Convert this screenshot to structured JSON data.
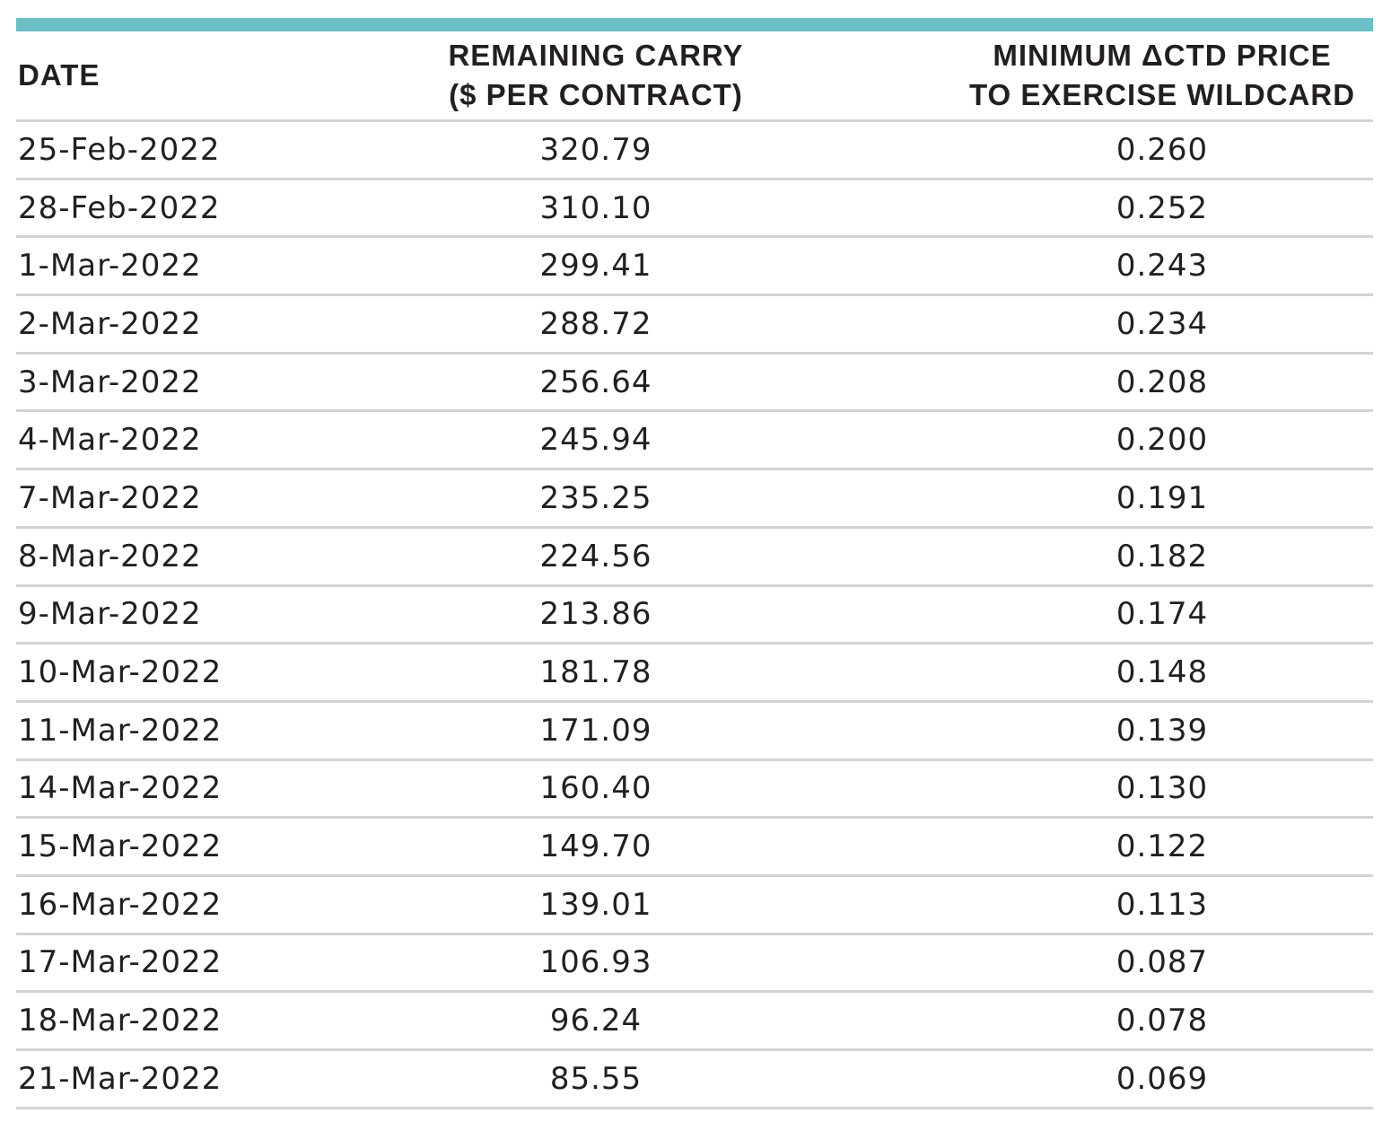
{
  "colors": {
    "top_bar": "#6bbfc5",
    "rule": "#d1d3d4",
    "text": "#231f20"
  },
  "table": {
    "headers": {
      "date": "DATE",
      "carry_line1": "REMAINING CARRY",
      "carry_line2": "($ PER CONTRACT)",
      "delta_line1": "MINIMUM ΔCTD PRICE",
      "delta_line2": "TO EXERCISE WILDCARD"
    },
    "rows": [
      {
        "date": "25-Feb-2022",
        "carry": "320.79",
        "min_price": "0.260"
      },
      {
        "date": "28-Feb-2022",
        "carry": "310.10",
        "min_price": "0.252"
      },
      {
        "date": "1-Mar-2022",
        "carry": "299.41",
        "min_price": "0.243"
      },
      {
        "date": "2-Mar-2022",
        "carry": "288.72",
        "min_price": "0.234"
      },
      {
        "date": "3-Mar-2022",
        "carry": "256.64",
        "min_price": "0.208"
      },
      {
        "date": "4-Mar-2022",
        "carry": "245.94",
        "min_price": "0.200"
      },
      {
        "date": "7-Mar-2022",
        "carry": "235.25",
        "min_price": "0.191"
      },
      {
        "date": "8-Mar-2022",
        "carry": "224.56",
        "min_price": "0.182"
      },
      {
        "date": "9-Mar-2022",
        "carry": "213.86",
        "min_price": "0.174"
      },
      {
        "date": "10-Mar-2022",
        "carry": "181.78",
        "min_price": "0.148"
      },
      {
        "date": "11-Mar-2022",
        "carry": "171.09",
        "min_price": "0.139"
      },
      {
        "date": "14-Mar-2022",
        "carry": "160.40",
        "min_price": "0.130"
      },
      {
        "date": "15-Mar-2022",
        "carry": "149.70",
        "min_price": "0.122"
      },
      {
        "date": "16-Mar-2022",
        "carry": "139.01",
        "min_price": "0.113"
      },
      {
        "date": "17-Mar-2022",
        "carry": "106.93",
        "min_price": "0.087"
      },
      {
        "date": "18-Mar-2022",
        "carry": "96.24",
        "min_price": "0.078"
      },
      {
        "date": "21-Mar-2022",
        "carry": "85.55",
        "min_price": "0.069"
      }
    ]
  }
}
